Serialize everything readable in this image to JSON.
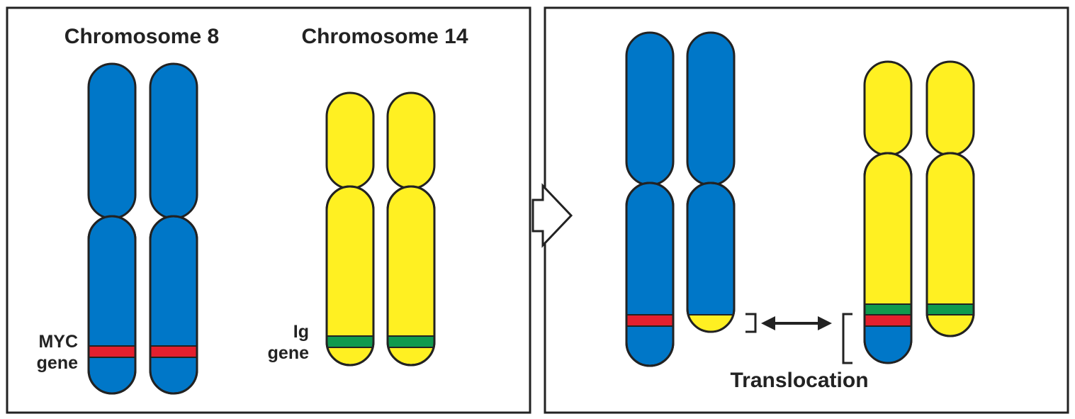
{
  "labels": {
    "chromosome_8": "Chromosome 8",
    "chromosome_14": "Chromosome 14",
    "myc_gene_line1": "MYC",
    "myc_gene_line2": "gene",
    "ig_gene_line1": "Ig",
    "ig_gene_line2": "gene",
    "translocation": "Translocation"
  },
  "colors": {
    "chromosome_8": "#0077C8",
    "chromosome_14": "#FFF022",
    "myc_band": "#E3202E",
    "ig_band": "#109A4E",
    "outline": "#222222",
    "background": "#FFFFFF"
  },
  "icons": {
    "process_arrow": "right-arrow-icon",
    "exchange_arrow": "double-headed-arrow-icon"
  }
}
